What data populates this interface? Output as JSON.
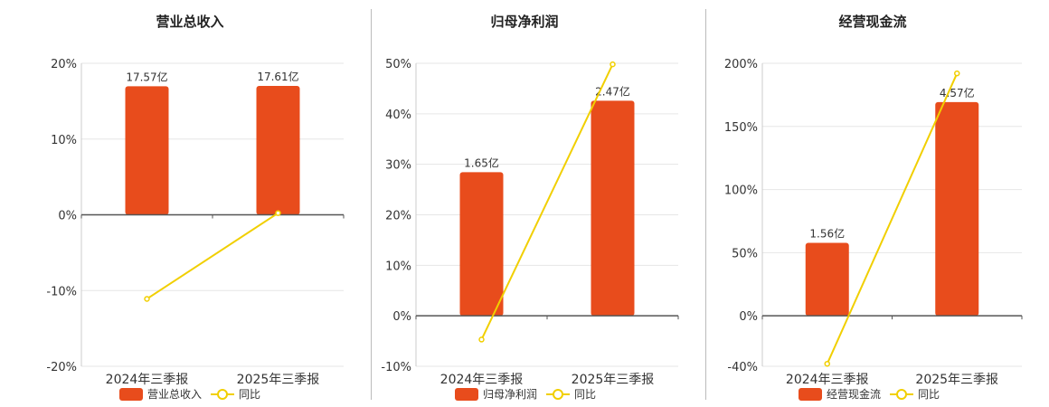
{
  "legend_line_label": "同比",
  "colors": {
    "bar": "#e84c1c",
    "line": "#f1cf00",
    "grid": "#e6e6e6",
    "axis": "#555555",
    "text": "#333333"
  },
  "chart_data": [
    {
      "type": "bar",
      "title": "营业总收入",
      "categories": [
        "2024年三季报",
        "2025年三季报"
      ],
      "series": [
        {
          "name": "营业总收入",
          "type": "bar",
          "values": [
            17.57,
            17.61
          ],
          "labels": [
            "17.57亿",
            "17.61亿"
          ]
        },
        {
          "name": "同比",
          "type": "line",
          "values": [
            -11.1,
            0.23
          ]
        }
      ],
      "ylim": [
        -20,
        20
      ],
      "yticks": [
        -20,
        -10,
        0,
        10,
        20
      ],
      "ytick_labels": [
        "-20%",
        "-10%",
        "0%",
        "10%",
        "20%"
      ],
      "bar_axis_max": 20.7,
      "grid": true,
      "legend": "bottom"
    },
    {
      "type": "bar",
      "title": "归母净利润",
      "categories": [
        "2024年三季报",
        "2025年三季报"
      ],
      "series": [
        {
          "name": "归母净利润",
          "type": "bar",
          "values": [
            1.65,
            2.47
          ],
          "labels": [
            "1.65亿",
            "2.47亿"
          ]
        },
        {
          "name": "同比",
          "type": "line",
          "values": [
            -4.7,
            49.8
          ]
        }
      ],
      "ylim": [
        -10,
        50
      ],
      "yticks": [
        -10,
        0,
        10,
        20,
        30,
        40,
        50
      ],
      "ytick_labels": [
        "-10%",
        "0%",
        "10%",
        "20%",
        "30%",
        "40%",
        "50%"
      ],
      "bar_axis_max": 2.9,
      "grid": true,
      "legend": "bottom"
    },
    {
      "type": "bar",
      "title": "经营现金流",
      "categories": [
        "2024年三季报",
        "2025年三季报"
      ],
      "series": [
        {
          "name": "经营现金流",
          "type": "bar",
          "values": [
            1.56,
            4.57
          ],
          "labels": [
            "1.56亿",
            "4.57亿"
          ]
        },
        {
          "name": "同比",
          "type": "line",
          "values": [
            -38,
            192
          ]
        }
      ],
      "ylim": [
        -40,
        200
      ],
      "yticks": [
        -40,
        0,
        50,
        100,
        150,
        200
      ],
      "ytick_labels": [
        "-40%",
        "0%",
        "50%",
        "100%",
        "150%",
        "200%"
      ],
      "bar_axis_max": 5.4,
      "grid": true,
      "legend": "bottom"
    }
  ]
}
